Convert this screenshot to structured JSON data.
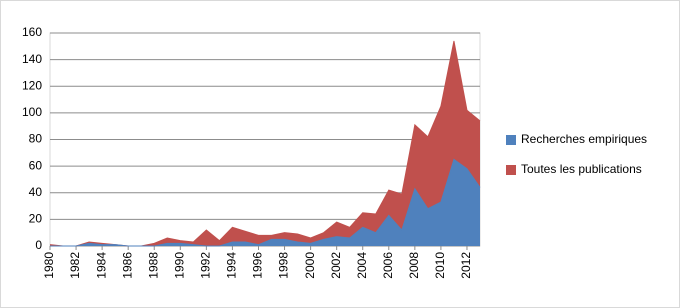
{
  "chart_data": {
    "type": "area",
    "x": [
      1980,
      1981,
      1982,
      1983,
      1984,
      1985,
      1986,
      1987,
      1988,
      1989,
      1990,
      1991,
      1992,
      1993,
      1994,
      1995,
      1996,
      1997,
      1998,
      1999,
      2000,
      2001,
      2002,
      2003,
      2004,
      2005,
      2006,
      2007,
      2008,
      2009,
      2010,
      2011,
      2012,
      2013
    ],
    "series": [
      {
        "name": "Recherches empiriques",
        "color": "#4f81bd",
        "values": [
          0,
          0,
          0,
          2,
          1,
          1,
          0,
          0,
          0,
          2,
          2,
          1,
          0,
          0,
          3,
          3,
          1,
          5,
          5,
          3,
          2,
          5,
          7,
          6,
          14,
          10,
          23,
          12,
          43,
          28,
          33,
          65,
          58,
          44
        ]
      },
      {
        "name": "Toutes les publications",
        "color": "#c0504d",
        "values": [
          1,
          0,
          0,
          3,
          2,
          1,
          0,
          0,
          2,
          6,
          4,
          3,
          12,
          4,
          14,
          11,
          8,
          8,
          10,
          9,
          6,
          10,
          18,
          14,
          25,
          24,
          42,
          39,
          91,
          82,
          105,
          154,
          102,
          94
        ]
      }
    ],
    "xlim": [
      1980,
      2013
    ],
    "xticks": [
      1980,
      1982,
      1984,
      1986,
      1988,
      1990,
      1992,
      1994,
      1996,
      1998,
      2000,
      2002,
      2004,
      2006,
      2008,
      2010,
      2012
    ],
    "ylim": [
      0,
      160
    ],
    "yticks": [
      0,
      20,
      40,
      60,
      80,
      100,
      120,
      140,
      160
    ],
    "grid": true,
    "legend": "right"
  }
}
